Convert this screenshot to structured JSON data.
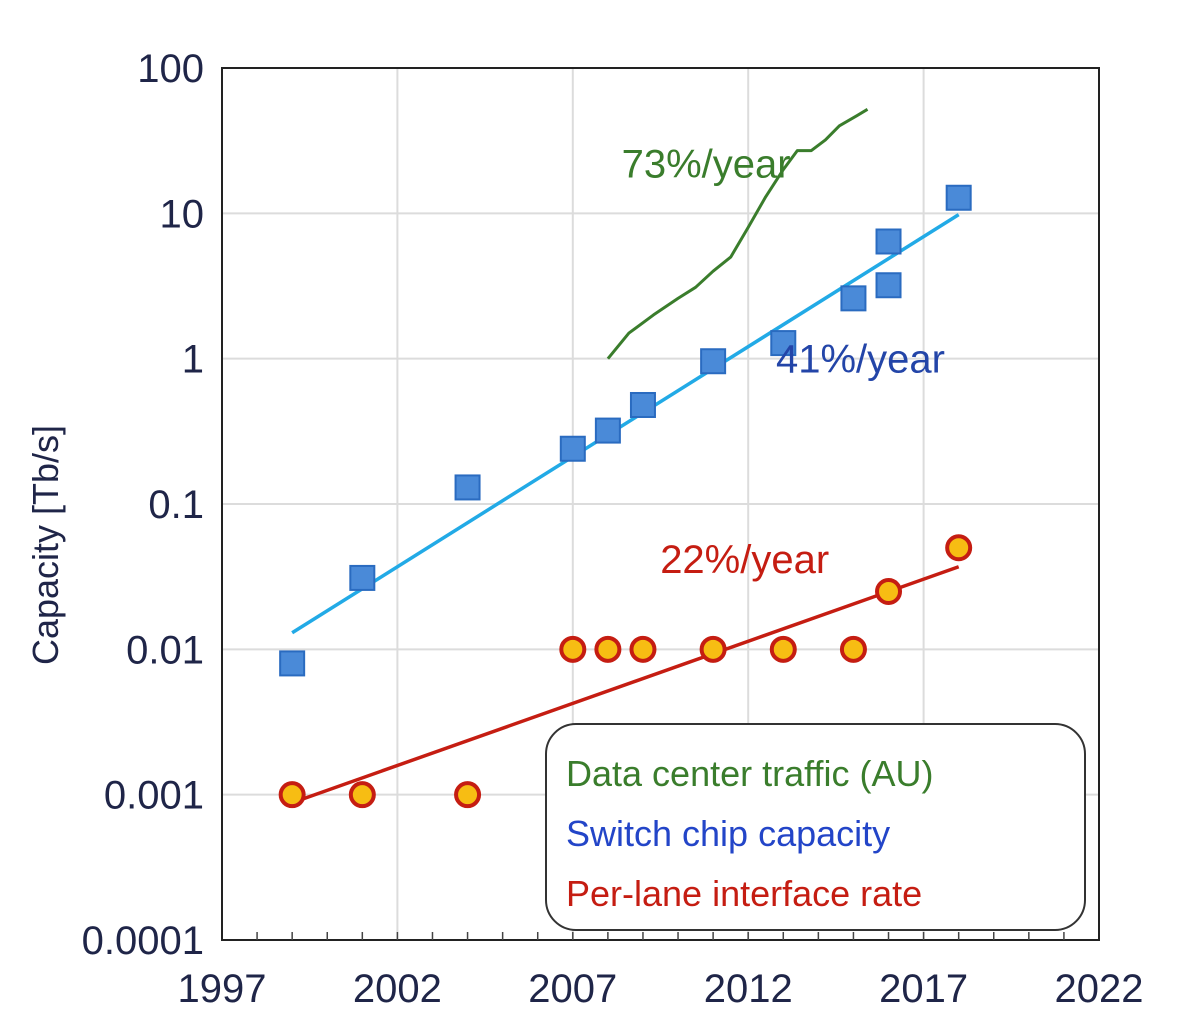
{
  "chart_data": {
    "type": "scatter",
    "ylabel": "Capacity [Tb/s]",
    "xlabel": "",
    "yscale": "log",
    "xlim": [
      1997,
      2022
    ],
    "ylim": [
      0.0001,
      100
    ],
    "x_ticks": [
      "1997",
      "2002",
      "2007",
      "2012",
      "2017",
      "2022"
    ],
    "y_ticks": [
      "0.0001",
      "0.001",
      "0.01",
      "0.1",
      "1",
      "10",
      "100"
    ],
    "grid": true,
    "legend_position": "bottom-right",
    "series": [
      {
        "name": "Data center traffic (AU)",
        "kind": "line",
        "color": "#3a7d2c",
        "points": [
          [
            2008.0,
            1.0
          ],
          [
            2008.6,
            1.5
          ],
          [
            2009.3,
            2.0
          ],
          [
            2010.0,
            2.6
          ],
          [
            2010.5,
            3.1
          ],
          [
            2011.0,
            4.0
          ],
          [
            2011.5,
            5.0
          ],
          [
            2012.0,
            8.0
          ],
          [
            2012.5,
            13.0
          ],
          [
            2013.0,
            20.0
          ],
          [
            2013.4,
            27.0
          ],
          [
            2013.8,
            27.0
          ],
          [
            2014.2,
            32.0
          ],
          [
            2014.6,
            40.0
          ],
          [
            2015.1,
            47.0
          ],
          [
            2015.4,
            52.0
          ]
        ]
      },
      {
        "name": "Switch chip capacity",
        "kind": "scatter",
        "marker": "square",
        "color": "#4a8ad8",
        "points": [
          [
            1999,
            0.008
          ],
          [
            2001,
            0.031
          ],
          [
            2004,
            0.13
          ],
          [
            2007,
            0.24
          ],
          [
            2008,
            0.32
          ],
          [
            2009,
            0.48
          ],
          [
            2011,
            0.96
          ],
          [
            2013,
            1.28
          ],
          [
            2015,
            2.6
          ],
          [
            2016,
            6.4
          ],
          [
            2016,
            3.2
          ],
          [
            2018,
            12.8
          ]
        ],
        "fit": {
          "x": [
            1999,
            2018
          ],
          "y": [
            0.013,
            9.8
          ],
          "color": "#22aae6"
        }
      },
      {
        "name": "Per-lane interface rate",
        "kind": "scatter",
        "marker": "circle",
        "color": "#f7bd13",
        "edge_color": "#c51d12",
        "points": [
          [
            1999,
            0.001
          ],
          [
            2001,
            0.001
          ],
          [
            2004,
            0.001
          ],
          [
            2007,
            0.01
          ],
          [
            2008,
            0.01
          ],
          [
            2009,
            0.01
          ],
          [
            2011,
            0.01
          ],
          [
            2013,
            0.01
          ],
          [
            2015,
            0.01
          ],
          [
            2016,
            0.025
          ],
          [
            2018,
            0.05
          ]
        ],
        "fit": {
          "x": [
            1999,
            2018
          ],
          "y": [
            0.00088,
            0.037
          ],
          "color": "#c51d12"
        }
      }
    ],
    "annotations": [
      {
        "text": "73%/year",
        "x": 2010.8,
        "y": 22,
        "color": "#3a7d2c"
      },
      {
        "text": "41%/year",
        "x": 2015.2,
        "y": 1.0,
        "color": "#2345a8"
      },
      {
        "text": "22%/year",
        "x": 2011.9,
        "y": 0.042,
        "color": "#c51d12"
      }
    ],
    "legend": [
      {
        "label": "Data center traffic (AU)",
        "color": "#3a7d2c"
      },
      {
        "label": "Switch chip capacity",
        "color": "#2345c8"
      },
      {
        "label": "Per-lane interface rate",
        "color": "#c51d12"
      }
    ]
  }
}
